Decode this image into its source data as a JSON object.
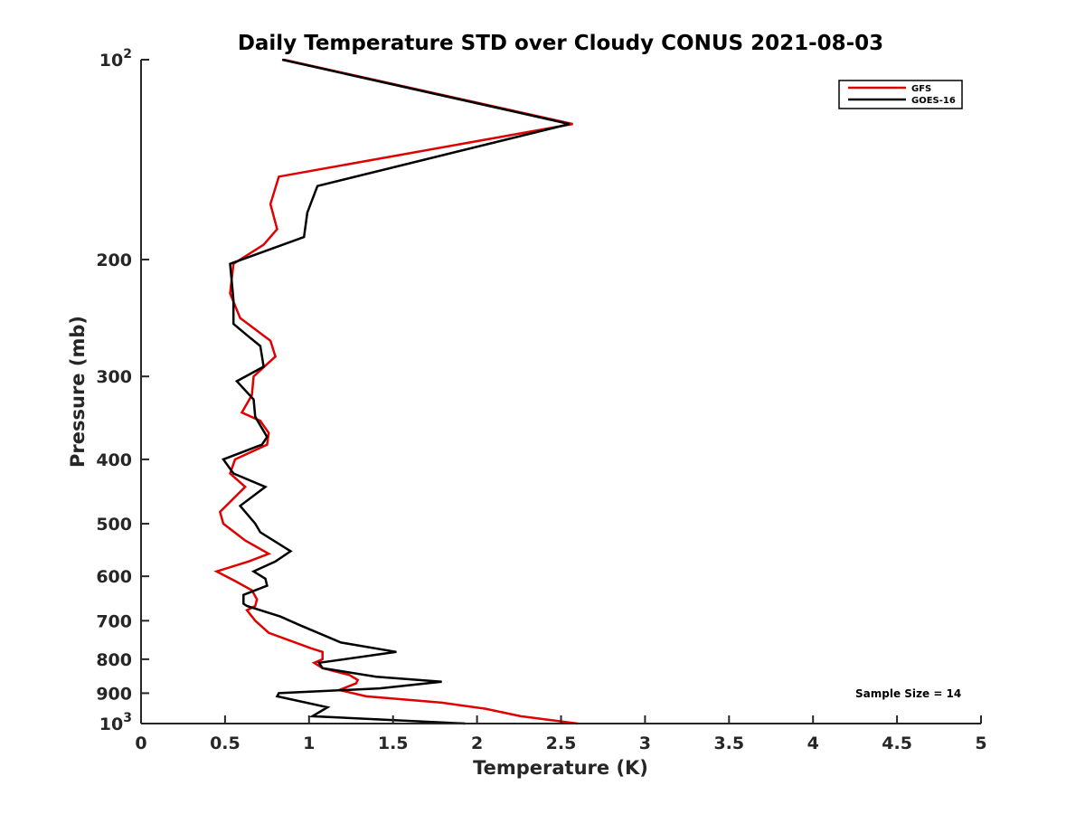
{
  "chart_data": {
    "type": "line",
    "title": "Daily Temperature STD over Cloudy CONUS 2021-08-03",
    "xlabel": "Temperature (K)",
    "ylabel": "Pressure (mb)",
    "xlim": [
      0,
      5
    ],
    "ylim": [
      100,
      1000
    ],
    "yscale": "log",
    "yreversed": true,
    "grid": false,
    "legend_position": "top-right",
    "xticks": [
      0,
      0.5,
      1,
      1.5,
      2,
      2.5,
      3,
      3.5,
      4,
      4.5,
      5
    ],
    "xtick_labels": [
      "0",
      "0.5",
      "1",
      "1.5",
      "2",
      "2.5",
      "3",
      "3.5",
      "4",
      "4.5",
      "5"
    ],
    "yticks": [
      100,
      200,
      300,
      400,
      500,
      600,
      700,
      800,
      900,
      1000
    ],
    "ytick_labels": [
      {
        "base": "10",
        "exp": "2"
      },
      {
        "base": "200",
        "exp": ""
      },
      {
        "base": "300",
        "exp": ""
      },
      {
        "base": "400",
        "exp": ""
      },
      {
        "base": "500",
        "exp": ""
      },
      {
        "base": "600",
        "exp": ""
      },
      {
        "base": "700",
        "exp": ""
      },
      {
        "base": "800",
        "exp": ""
      },
      {
        "base": "900",
        "exp": ""
      },
      {
        "base": "10",
        "exp": "3"
      }
    ],
    "annotation": "Sample Size = 14",
    "series": [
      {
        "name": "GFS",
        "color": "#e00000",
        "points": [
          [
            0.85,
            100
          ],
          [
            2.57,
            125
          ],
          [
            0.82,
            150
          ],
          [
            0.77,
            165
          ],
          [
            0.81,
            180
          ],
          [
            0.73,
            190
          ],
          [
            0.55,
            203
          ],
          [
            0.53,
            225
          ],
          [
            0.59,
            245
          ],
          [
            0.77,
            265
          ],
          [
            0.8,
            280
          ],
          [
            0.67,
            300
          ],
          [
            0.66,
            320
          ],
          [
            0.6,
            340
          ],
          [
            0.71,
            350
          ],
          [
            0.76,
            365
          ],
          [
            0.75,
            380
          ],
          [
            0.56,
            400
          ],
          [
            0.53,
            420
          ],
          [
            0.62,
            440
          ],
          [
            0.47,
            480
          ],
          [
            0.49,
            500
          ],
          [
            0.62,
            530
          ],
          [
            0.76,
            555
          ],
          [
            0.64,
            570
          ],
          [
            0.45,
            590
          ],
          [
            0.56,
            610
          ],
          [
            0.66,
            630
          ],
          [
            0.69,
            650
          ],
          [
            0.68,
            665
          ],
          [
            0.63,
            675
          ],
          [
            0.68,
            700
          ],
          [
            0.76,
            730
          ],
          [
            1.01,
            770
          ],
          [
            1.08,
            780
          ],
          [
            1.08,
            800
          ],
          [
            1.03,
            810
          ],
          [
            1.08,
            825
          ],
          [
            1.24,
            845
          ],
          [
            1.29,
            860
          ],
          [
            1.28,
            870
          ],
          [
            1.18,
            890
          ],
          [
            1.34,
            910
          ],
          [
            1.79,
            930
          ],
          [
            2.05,
            950
          ],
          [
            2.26,
            975
          ],
          [
            2.6,
            1000
          ]
        ]
      },
      {
        "name": "GOES-16",
        "color": "#000000",
        "points": [
          [
            0.84,
            100
          ],
          [
            2.55,
            125
          ],
          [
            1.05,
            155
          ],
          [
            0.99,
            170
          ],
          [
            0.97,
            185
          ],
          [
            0.53,
            203
          ],
          [
            0.55,
            230
          ],
          [
            0.55,
            250
          ],
          [
            0.63,
            260
          ],
          [
            0.71,
            270
          ],
          [
            0.73,
            290
          ],
          [
            0.57,
            305
          ],
          [
            0.67,
            325
          ],
          [
            0.68,
            345
          ],
          [
            0.75,
            370
          ],
          [
            0.72,
            380
          ],
          [
            0.49,
            400
          ],
          [
            0.55,
            420
          ],
          [
            0.74,
            440
          ],
          [
            0.59,
            470
          ],
          [
            0.68,
            500
          ],
          [
            0.71,
            515
          ],
          [
            0.89,
            550
          ],
          [
            0.8,
            570
          ],
          [
            0.67,
            590
          ],
          [
            0.74,
            605
          ],
          [
            0.75,
            620
          ],
          [
            0.61,
            640
          ],
          [
            0.61,
            660
          ],
          [
            0.63,
            665
          ],
          [
            0.83,
            690
          ],
          [
            0.94,
            710
          ],
          [
            1.19,
            755
          ],
          [
            1.52,
            780
          ],
          [
            1.06,
            810
          ],
          [
            1.08,
            825
          ],
          [
            1.4,
            850
          ],
          [
            1.79,
            865
          ],
          [
            1.42,
            885
          ],
          [
            0.82,
            900
          ],
          [
            0.81,
            910
          ],
          [
            1.11,
            945
          ],
          [
            1.02,
            975
          ],
          [
            1.93,
            1000
          ]
        ]
      }
    ]
  }
}
